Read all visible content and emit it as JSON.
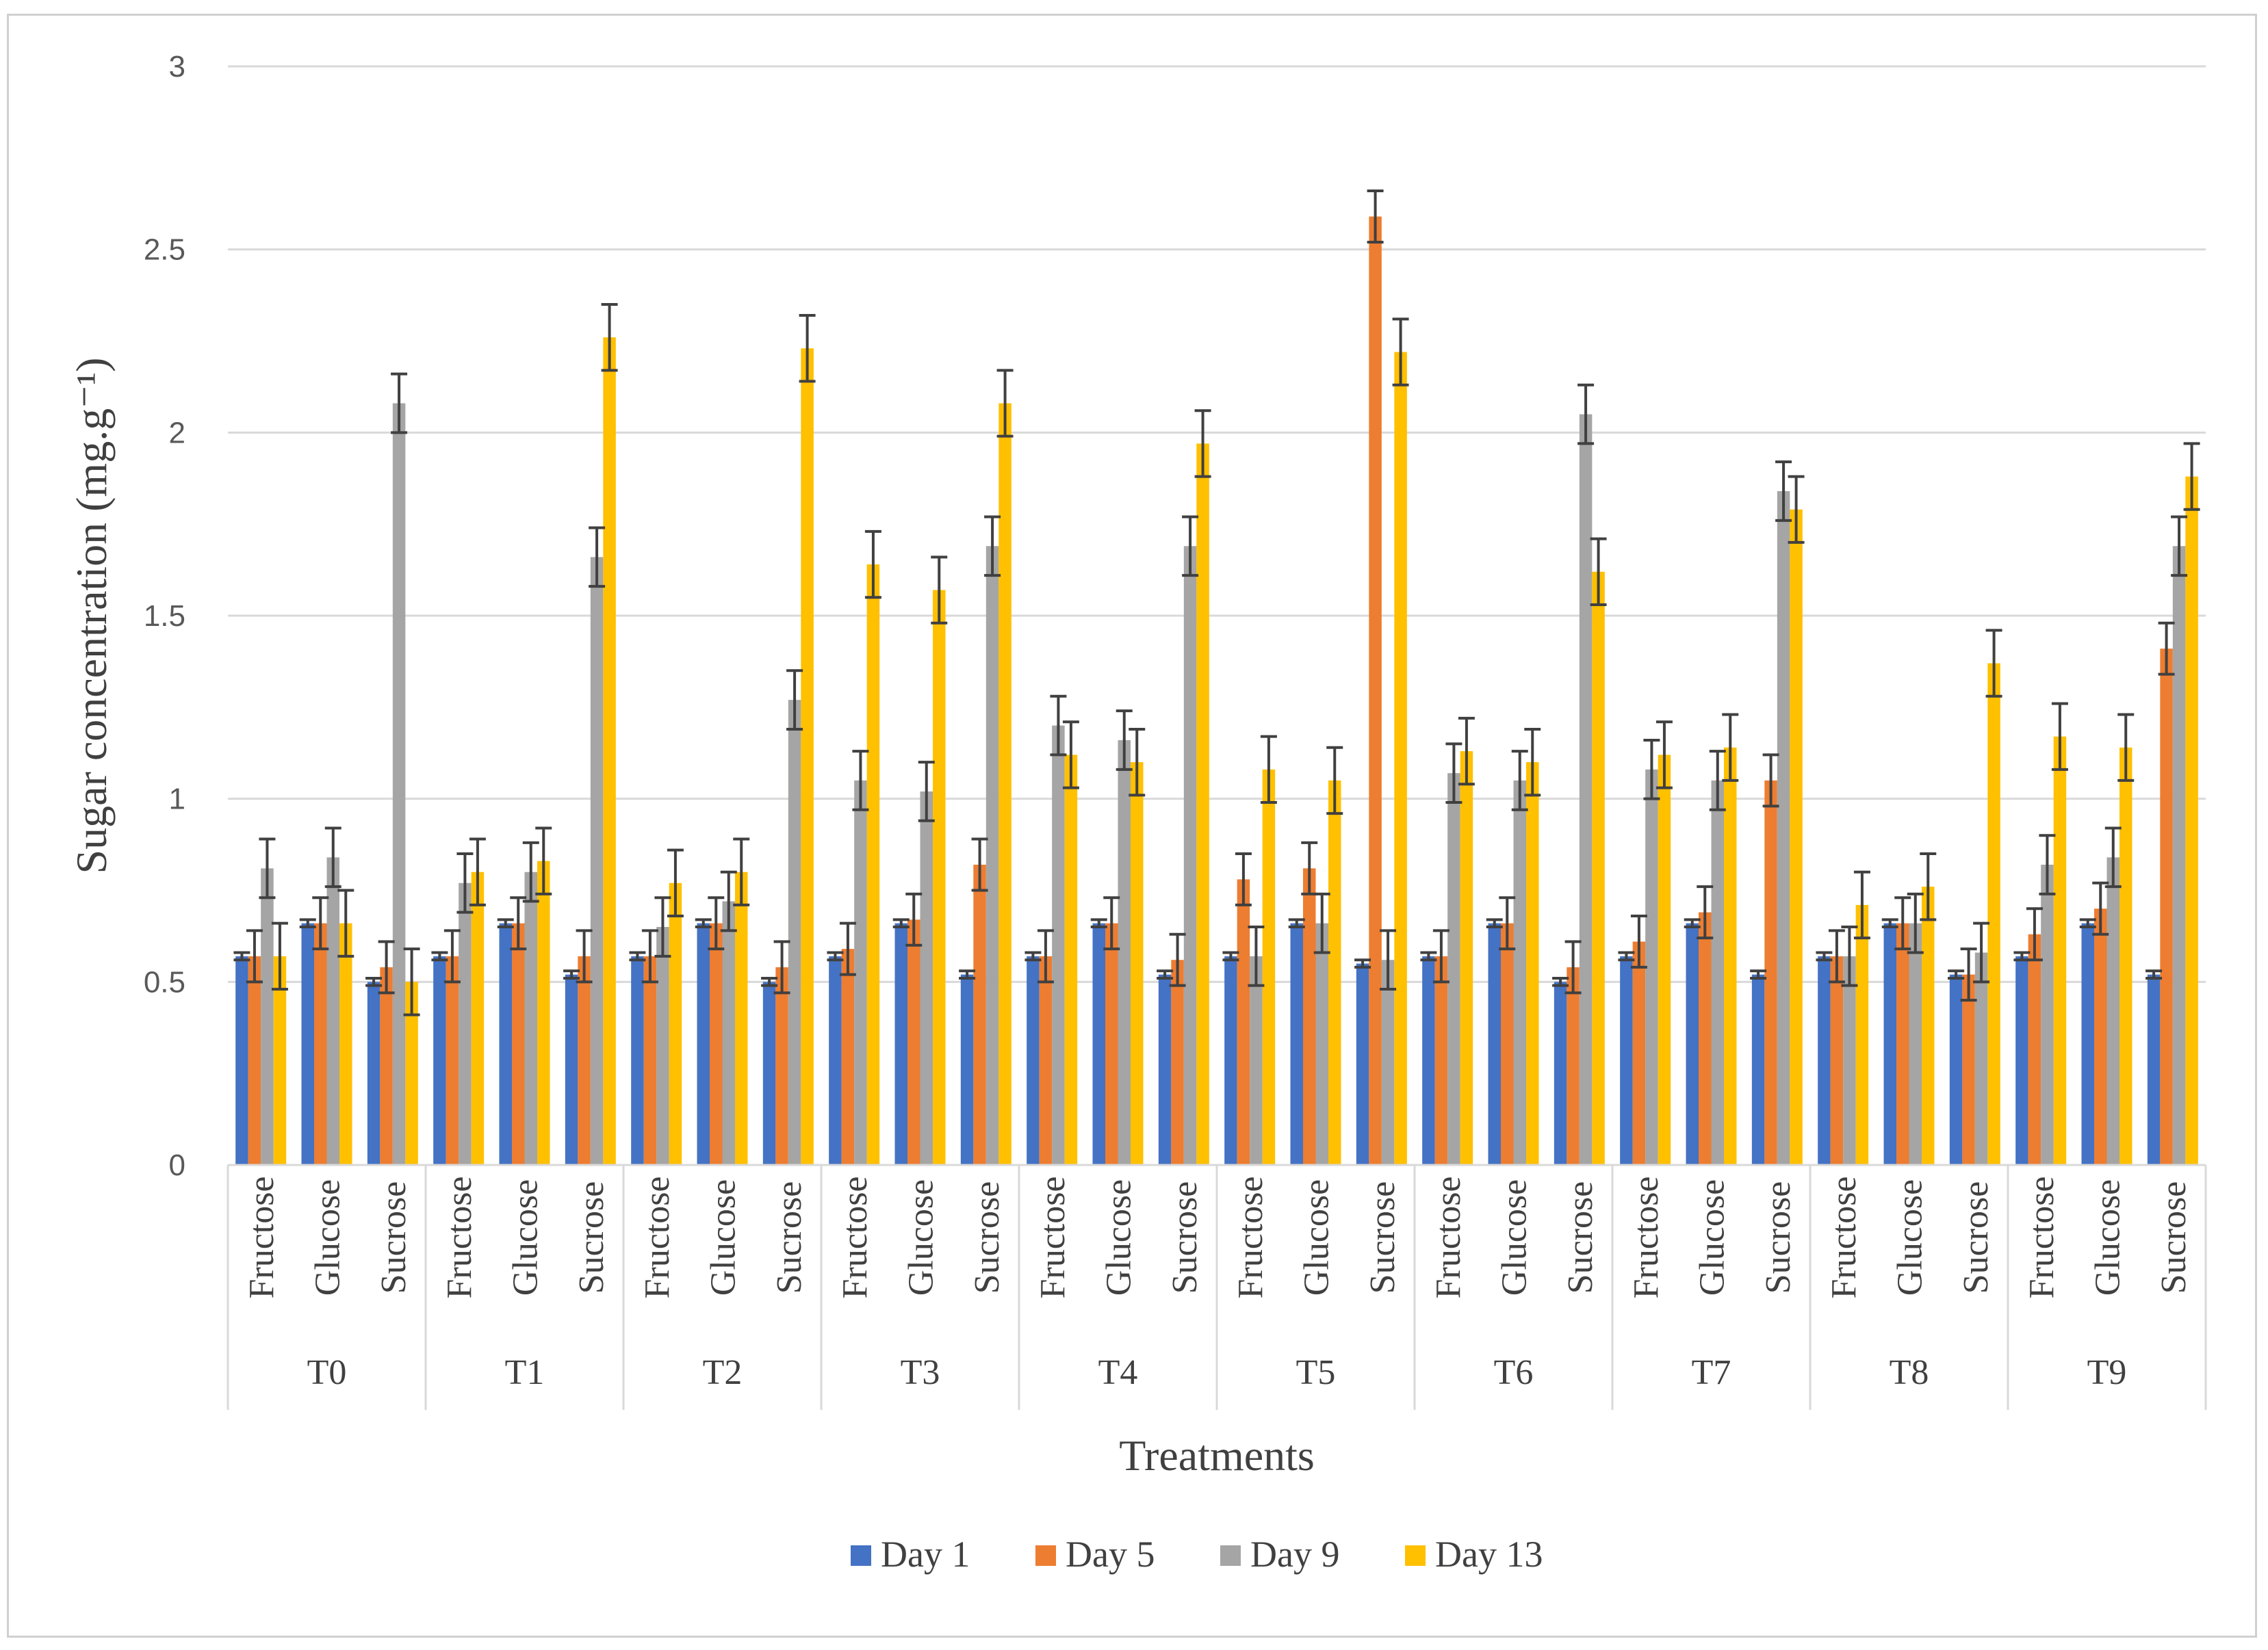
{
  "chart_data": {
    "type": "bar",
    "title": "",
    "xlabel": "Treatments",
    "ylabel": "Sugar concentration (mg.g⁻¹)",
    "ylim": [
      0,
      3
    ],
    "yticks": [
      0,
      0.5,
      1,
      1.5,
      2,
      2.5,
      3
    ],
    "ytick_labels": [
      "0",
      "0.5",
      "1",
      "1.5",
      "2",
      "2.5",
      "3"
    ],
    "grid": true,
    "legend_position": "bottom",
    "groups": [
      "T0",
      "T1",
      "T2",
      "T3",
      "T4",
      "T5",
      "T6",
      "T7",
      "T8",
      "T9"
    ],
    "subcategories": [
      "Fructose",
      "Glucose",
      "Sucrose"
    ],
    "series": [
      {
        "name": "Day 1",
        "color": "#4472C4",
        "values": [
          0.57,
          0.66,
          0.5,
          0.57,
          0.66,
          0.52,
          0.57,
          0.66,
          0.5,
          0.57,
          0.66,
          0.52,
          0.57,
          0.66,
          0.52,
          0.57,
          0.66,
          0.55,
          0.57,
          0.66,
          0.5,
          0.57,
          0.66,
          0.52,
          0.57,
          0.66,
          0.52,
          0.57,
          0.66,
          0.52
        ],
        "errors": [
          0.01,
          0.01,
          0.01,
          0.01,
          0.01,
          0.01,
          0.01,
          0.01,
          0.01,
          0.01,
          0.01,
          0.01,
          0.01,
          0.01,
          0.01,
          0.01,
          0.01,
          0.01,
          0.01,
          0.01,
          0.01,
          0.01,
          0.01,
          0.01,
          0.01,
          0.01,
          0.01,
          0.01,
          0.01,
          0.01
        ]
      },
      {
        "name": "Day 5",
        "color": "#ED7D31",
        "values": [
          0.57,
          0.66,
          0.54,
          0.57,
          0.66,
          0.57,
          0.57,
          0.66,
          0.54,
          0.59,
          0.67,
          0.82,
          0.57,
          0.66,
          0.56,
          0.78,
          0.81,
          2.59,
          0.57,
          0.66,
          0.54,
          0.61,
          0.69,
          1.05,
          0.57,
          0.66,
          0.52,
          0.63,
          0.7,
          1.41
        ],
        "errors": [
          0.07,
          0.07,
          0.07,
          0.07,
          0.07,
          0.07,
          0.07,
          0.07,
          0.07,
          0.07,
          0.07,
          0.07,
          0.07,
          0.07,
          0.07,
          0.07,
          0.07,
          0.07,
          0.07,
          0.07,
          0.07,
          0.07,
          0.07,
          0.07,
          0.07,
          0.07,
          0.07,
          0.07,
          0.07,
          0.07
        ]
      },
      {
        "name": "Day 9",
        "color": "#A5A5A5",
        "values": [
          0.81,
          0.84,
          2.08,
          0.77,
          0.8,
          1.66,
          0.65,
          0.72,
          1.27,
          1.05,
          1.02,
          1.69,
          1.2,
          1.16,
          1.69,
          0.57,
          0.66,
          0.56,
          1.07,
          1.05,
          2.05,
          1.08,
          1.05,
          1.84,
          0.57,
          0.66,
          0.58,
          0.82,
          0.84,
          1.69
        ],
        "errors": [
          0.08,
          0.08,
          0.08,
          0.08,
          0.08,
          0.08,
          0.08,
          0.08,
          0.08,
          0.08,
          0.08,
          0.08,
          0.08,
          0.08,
          0.08,
          0.08,
          0.08,
          0.08,
          0.08,
          0.08,
          0.08,
          0.08,
          0.08,
          0.08,
          0.08,
          0.08,
          0.08,
          0.08,
          0.08,
          0.08
        ]
      },
      {
        "name": "Day 13",
        "color": "#FFC000",
        "values": [
          0.57,
          0.66,
          0.5,
          0.8,
          0.83,
          2.26,
          0.77,
          0.8,
          2.23,
          1.64,
          1.57,
          2.08,
          1.12,
          1.1,
          1.97,
          1.08,
          1.05,
          2.22,
          1.13,
          1.1,
          1.62,
          1.12,
          1.14,
          1.79,
          0.71,
          0.76,
          1.37,
          1.17,
          1.14,
          1.88
        ],
        "errors": [
          0.09,
          0.09,
          0.09,
          0.09,
          0.09,
          0.09,
          0.09,
          0.09,
          0.09,
          0.09,
          0.09,
          0.09,
          0.09,
          0.09,
          0.09,
          0.09,
          0.09,
          0.09,
          0.09,
          0.09,
          0.09,
          0.09,
          0.09,
          0.09,
          0.09,
          0.09,
          0.09,
          0.09,
          0.09,
          0.09
        ]
      }
    ]
  }
}
